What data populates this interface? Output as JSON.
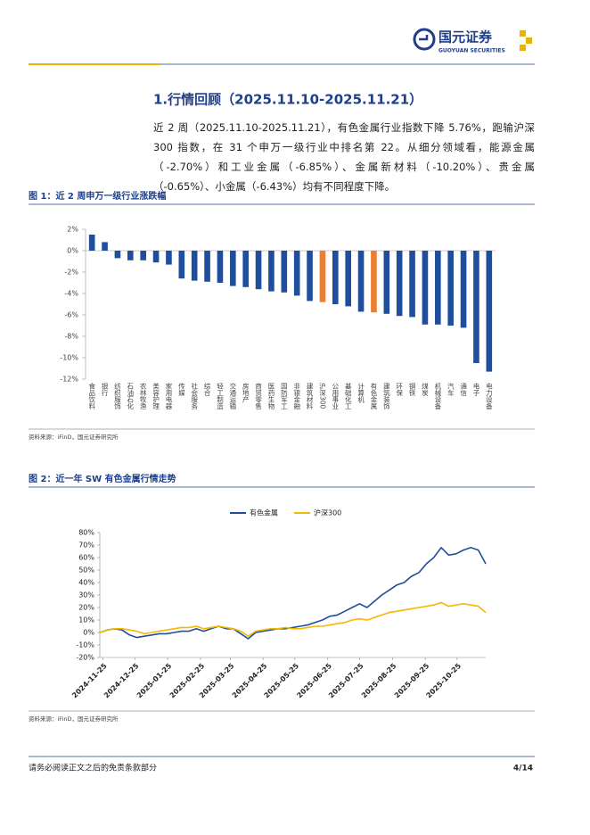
{
  "header": {
    "brand": "国元证券",
    "brand_en": "GUOYUAN SECURITIES"
  },
  "section": {
    "title": "1.行情回顾（2025.11.10-2025.11.21）",
    "paragraph": "近 2 周（2025.11.10-2025.11.21），有色金属行业指数下降 5.76%，跑输沪深 300 指数，在 31 个申万一级行业中排名第 22。从细分领域看，能源金属（-2.70%）和工业金属（-6.85%）、金属新材料（-10.20%）、贵金属（-0.65%）、小金属（-6.43%）均有不同程度下降。"
  },
  "chart_data": [
    {
      "type": "bar",
      "title": "图 1：近 2 周申万一级行业涨跌幅",
      "source": "资料来源：iFinD，国元证券研究所",
      "categories": [
        "食品饮料",
        "银行",
        "纺织服饰",
        "石油石化",
        "农林牧渔",
        "美容护理",
        "家用电器",
        "传媒",
        "社会服务",
        "综合",
        "轻工制造",
        "交通运输",
        "房地产",
        "商贸零售",
        "医药生物",
        "国防军工",
        "非银金融",
        "建筑材料",
        "沪深300",
        "公用事业",
        "基础化工",
        "计算机",
        "有色金属",
        "建筑装饰",
        "环保",
        "钢铁",
        "煤炭",
        "机械设备",
        "汽车",
        "通信",
        "电子",
        "电力设备"
      ],
      "values": [
        1.5,
        0.8,
        -0.7,
        -0.9,
        -0.9,
        -1.1,
        -1.3,
        -2.6,
        -2.8,
        -2.9,
        -3.0,
        -3.3,
        -3.4,
        -3.6,
        -3.8,
        -3.9,
        -4.2,
        -4.7,
        -4.8,
        -5.0,
        -5.2,
        -5.7,
        -5.76,
        -5.9,
        -6.1,
        -6.2,
        -6.9,
        -6.9,
        -7.0,
        -7.2,
        -10.5,
        -11.3
      ],
      "colors": [
        "#1f4e9c",
        "#1f4e9c",
        "#1f4e9c",
        "#1f4e9c",
        "#1f4e9c",
        "#1f4e9c",
        "#1f4e9c",
        "#1f4e9c",
        "#1f4e9c",
        "#1f4e9c",
        "#1f4e9c",
        "#1f4e9c",
        "#1f4e9c",
        "#1f4e9c",
        "#1f4e9c",
        "#1f4e9c",
        "#1f4e9c",
        "#1f4e9c",
        "#ed7d31",
        "#1f4e9c",
        "#1f4e9c",
        "#1f4e9c",
        "#ed7d31",
        "#1f4e9c",
        "#1f4e9c",
        "#1f4e9c",
        "#1f4e9c",
        "#1f4e9c",
        "#1f4e9c",
        "#1f4e9c",
        "#1f4e9c",
        "#1f4e9c"
      ],
      "ylim": [
        -12,
        2
      ],
      "yticks": [
        {
          "value": 2,
          "label": "2%"
        },
        {
          "value": 0,
          "label": "0%"
        },
        {
          "value": -2,
          "label": "-2%"
        },
        {
          "value": -4,
          "label": "-4%"
        },
        {
          "value": -6,
          "label": "-6%"
        },
        {
          "value": -8,
          "label": "-8%"
        },
        {
          "value": -10,
          "label": "-10%"
        },
        {
          "value": -12,
          "label": "-12%"
        }
      ],
      "grid": false
    },
    {
      "type": "line",
      "title": "图 2：近一年 SW 有色金属行情走势",
      "source": "资料来源：iFinD，国元证券研究所",
      "x": [
        "2024-11-22",
        "2024-11-29",
        "2024-12-06",
        "2024-12-13",
        "2024-12-20",
        "2024-12-27",
        "2025-01-03",
        "2025-01-10",
        "2025-01-17",
        "2025-01-24",
        "2025-01-31",
        "2025-02-07",
        "2025-02-14",
        "2025-02-21",
        "2025-02-28",
        "2025-03-07",
        "2025-03-14",
        "2025-03-21",
        "2025-03-28",
        "2025-04-04",
        "2025-04-11",
        "2025-04-18",
        "2025-04-25",
        "2025-05-02",
        "2025-05-09",
        "2025-05-16",
        "2025-05-23",
        "2025-05-30",
        "2025-06-06",
        "2025-06-13",
        "2025-06-20",
        "2025-06-27",
        "2025-07-04",
        "2025-07-11",
        "2025-07-18",
        "2025-07-25",
        "2025-08-01",
        "2025-08-08",
        "2025-08-15",
        "2025-08-22",
        "2025-08-29",
        "2025-09-05",
        "2025-09-12",
        "2025-09-19",
        "2025-09-26",
        "2025-10-03",
        "2025-10-10",
        "2025-10-17",
        "2025-10-24",
        "2025-10-31",
        "2025-11-07",
        "2025-11-14",
        "2025-11-21"
      ],
      "series": [
        {
          "name": "有色金属",
          "color": "#1f4e9c",
          "values": [
            0,
            2,
            3,
            2,
            -2,
            -4,
            -3,
            -2,
            -1,
            -1,
            0,
            1,
            1,
            3,
            1,
            3,
            5,
            3,
            3,
            -1,
            -5,
            0,
            1,
            2,
            3,
            3,
            4,
            5,
            6,
            8,
            10,
            13,
            14,
            17,
            20,
            23,
            20,
            25,
            30,
            34,
            38,
            40,
            45,
            48,
            55,
            60,
            68,
            62,
            63,
            66,
            68,
            66,
            55
          ]
        },
        {
          "name": "沪深300",
          "color": "#f5b800",
          "values": [
            0,
            2,
            3,
            3,
            2,
            1,
            -1,
            0,
            1,
            2,
            3,
            4,
            4,
            5,
            3,
            4,
            5,
            4,
            3,
            1,
            -3,
            1,
            2,
            3,
            3,
            4,
            3,
            3,
            4,
            5,
            5,
            6,
            7,
            8,
            10,
            11,
            10,
            12,
            14,
            16,
            17,
            18,
            19,
            20,
            21,
            22,
            24,
            21,
            22,
            23,
            22,
            21,
            16
          ]
        }
      ],
      "xlim": [
        "2024-11-22",
        "2025-11-21"
      ],
      "xticks": [
        "2024-11-25",
        "2024-12-25",
        "2025-01-25",
        "2025-02-25",
        "2025-03-25",
        "2025-04-25",
        "2025-05-25",
        "2025-06-25",
        "2025-07-25",
        "2025-08-25",
        "2025-09-25",
        "2025-10-25"
      ],
      "ylim": [
        -20,
        80
      ],
      "yticks": [
        {
          "value": 80,
          "label": "80%"
        },
        {
          "value": 70,
          "label": "70%"
        },
        {
          "value": 60,
          "label": "60%"
        },
        {
          "value": 50,
          "label": "50%"
        },
        {
          "value": 40,
          "label": "40%"
        },
        {
          "value": 30,
          "label": "30%"
        },
        {
          "value": 20,
          "label": "20%"
        },
        {
          "value": 10,
          "label": "10%"
        },
        {
          "value": 0,
          "label": "0%"
        },
        {
          "value": -10,
          "label": "-10%"
        },
        {
          "value": -20,
          "label": "-20%"
        }
      ],
      "legend": "top",
      "grid": false
    }
  ],
  "footer": {
    "disclaimer": "请务必阅读正文之后的免责条款部分",
    "page": "4/14"
  }
}
